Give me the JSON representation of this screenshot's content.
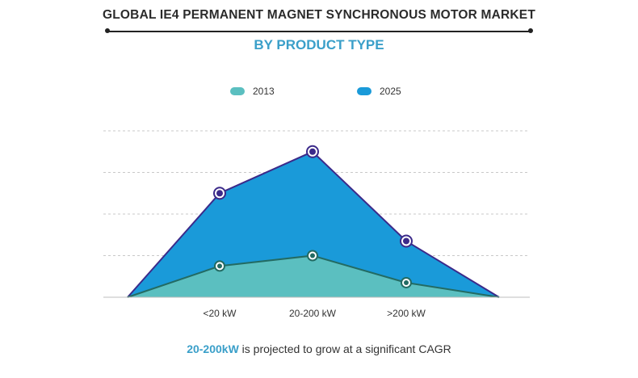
{
  "title": "GLOBAL IE4 PERMANENT MAGNET SYNCHRONOUS MOTOR MARKET",
  "subtitle": "BY PRODUCT TYPE",
  "footnote": {
    "highlight": "20-200kW",
    "text": " is projected to grow at a significant CAGR"
  },
  "colors": {
    "series_2013_fill": "#5bbfc0",
    "series_2013_line": "#236b63",
    "series_2025_fill": "#1a9ad9",
    "series_2025_line": "#3b2a8a"
  },
  "chart_data": {
    "type": "area",
    "categories": [
      "",
      "<20 kW",
      "20-200 kW",
      ">200 kW",
      ""
    ],
    "series": [
      {
        "name": "2013",
        "values": [
          0,
          0.75,
          1.0,
          0.35,
          0
        ]
      },
      {
        "name": "2025",
        "values": [
          0,
          2.5,
          3.5,
          1.35,
          0
        ]
      }
    ],
    "ylim": [
      0,
      4
    ],
    "grid": true,
    "legend": "top-center",
    "y_tick_labels_shown": false
  }
}
